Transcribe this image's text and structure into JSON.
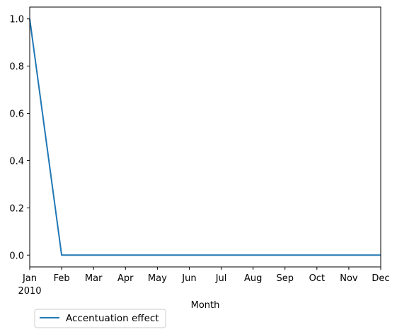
{
  "chart_data": {
    "type": "line",
    "x": [
      "2010-01",
      "2010-02",
      "2010-03",
      "2010-04",
      "2010-05",
      "2010-06",
      "2010-07",
      "2010-08",
      "2010-09",
      "2010-10",
      "2010-11",
      "2010-12"
    ],
    "x_tick_labels": [
      "Jan",
      "Feb",
      "Mar",
      "Apr",
      "May",
      "Jun",
      "Jul",
      "Aug",
      "Sep",
      "Oct",
      "Nov",
      "Dec"
    ],
    "x_year_label": "2010",
    "xlabel": "Month",
    "ylabel": "",
    "ylim": [
      -0.05,
      1.05
    ],
    "y_ticks": [
      0.0,
      0.2,
      0.4,
      0.6,
      0.8,
      1.0
    ],
    "y_tick_labels": [
      "0.0",
      "0.2",
      "0.4",
      "0.6",
      "0.8",
      "1.0"
    ],
    "grid": false,
    "legend_position": "bottom-left, below plot",
    "series": [
      {
        "name": "Accentuation effect",
        "color": "#1f77b4",
        "values": [
          1.0,
          0.0,
          0.0,
          0.0,
          0.0,
          0.0,
          0.0,
          0.0,
          0.0,
          0.0,
          0.0,
          0.0
        ]
      }
    ]
  }
}
